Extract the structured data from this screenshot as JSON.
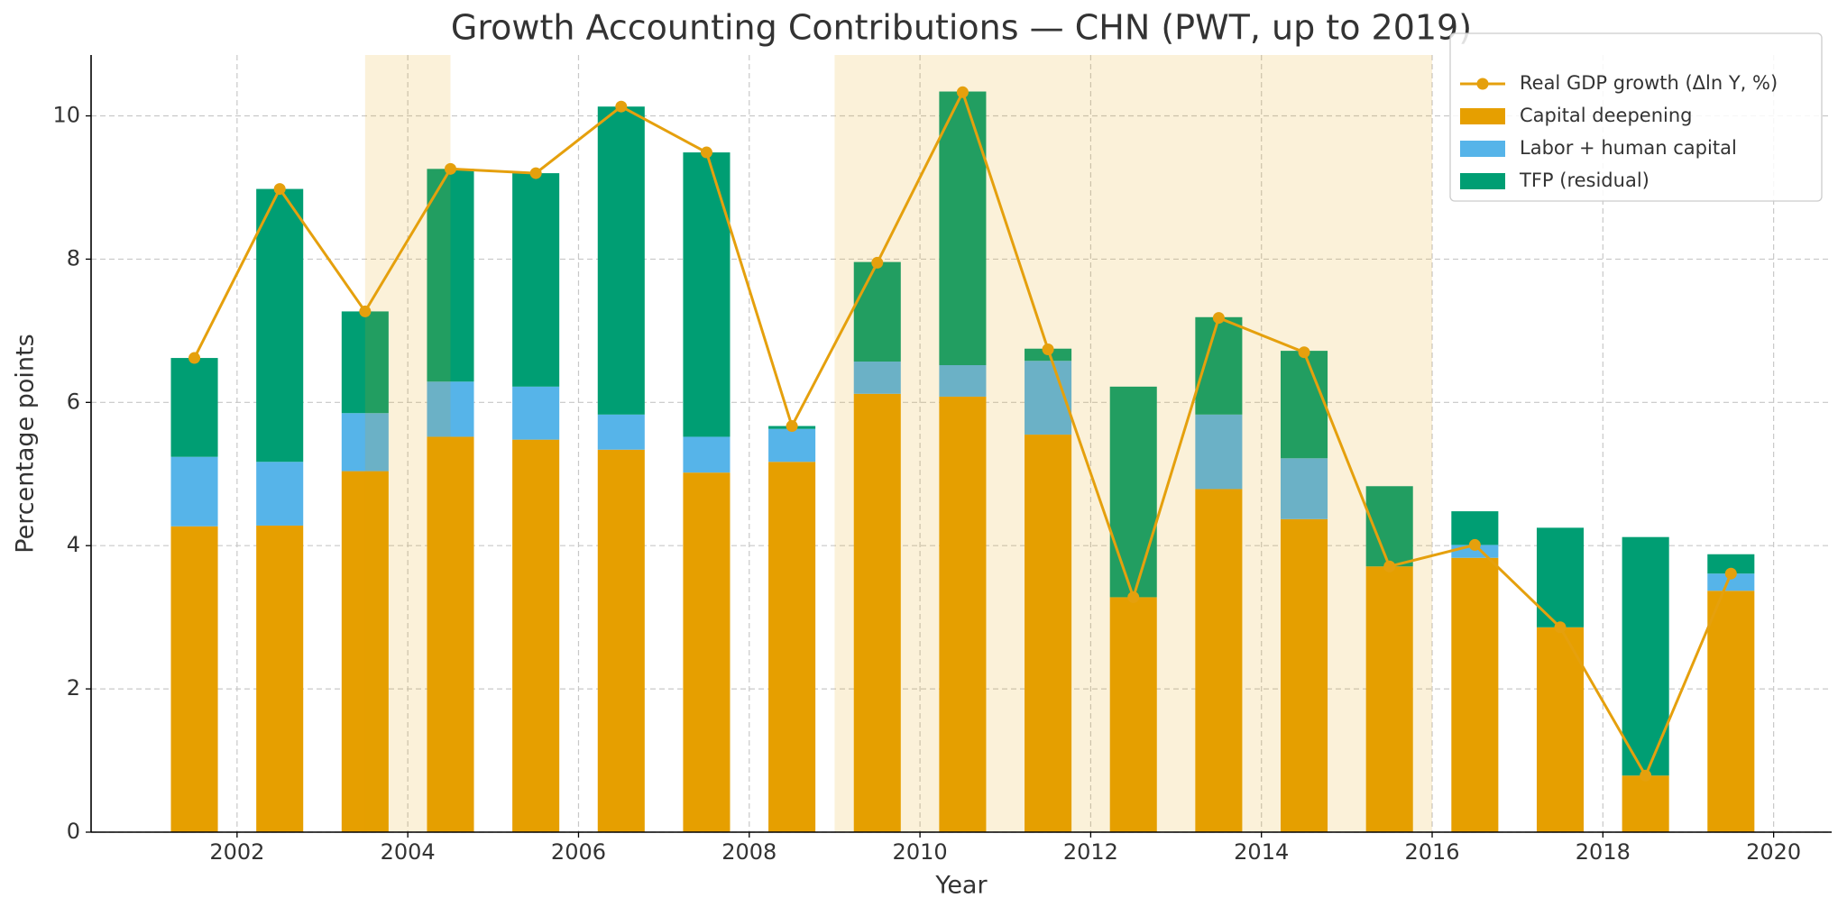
{
  "chart_data": {
    "type": "bar",
    "title": "Growth Accounting Contributions — CHN (PWT, up to 2019)",
    "x_label": "Year",
    "y_label": "Percentage points",
    "x": [
      2001.5,
      2002.5,
      2003.5,
      2004.5,
      2005.5,
      2006.5,
      2007.5,
      2008.5,
      2009.5,
      2010.5,
      2011.5,
      2012.5,
      2013.5,
      2014.5,
      2015.5,
      2016.5,
      2017.5,
      2018.5,
      2019.5
    ],
    "series": [
      {
        "name": "Real GDP growth (Δln Y, %)",
        "type": "line",
        "color": "#e5a00d",
        "values": [
          6.62,
          8.98,
          7.27,
          9.26,
          9.2,
          10.13,
          9.49,
          5.67,
          7.95,
          10.33,
          6.74,
          3.28,
          7.18,
          6.7,
          3.71,
          4.01,
          2.86,
          0.79,
          3.61
        ]
      },
      {
        "name": "Capital deepening",
        "type": "bar",
        "color": "#e69f00",
        "values": [
          4.27,
          4.28,
          5.04,
          5.52,
          5.48,
          5.34,
          5.02,
          5.17,
          6.12,
          6.08,
          5.55,
          3.28,
          4.79,
          4.37,
          3.71,
          3.83,
          2.86,
          0.79,
          3.37
        ]
      },
      {
        "name": "Labor + human capital",
        "type": "bar",
        "color": "#56b4e9",
        "values": [
          0.97,
          0.89,
          0.81,
          0.77,
          0.74,
          0.49,
          0.5,
          0.46,
          0.45,
          0.44,
          1.03,
          0,
          1.04,
          0.85,
          0,
          0.18,
          0,
          0,
          0.24
        ]
      },
      {
        "name": "TFP (residual)",
        "type": "bar",
        "color": "#009e73",
        "values": [
          1.38,
          3.81,
          1.42,
          2.97,
          2.98,
          4.3,
          3.97,
          0.04,
          1.39,
          3.82,
          0.17,
          2.94,
          1.36,
          1.5,
          1.12,
          0.47,
          1.39,
          3.33,
          0.27
        ]
      }
    ],
    "shaded_spans": [
      [
        2003.5,
        2004.5
      ],
      [
        2009,
        2016
      ]
    ],
    "shade_color": "rgba(230,159,0,0.15)",
    "xlim": [
      2000.29,
      2020.68
    ],
    "xticks": [
      2002,
      2004,
      2006,
      2008,
      2010,
      2012,
      2014,
      2016,
      2018,
      2020
    ],
    "ylim": [
      0,
      10.85
    ],
    "yticks": [
      0,
      2,
      4,
      6,
      8,
      10
    ],
    "grid": true,
    "legend": "upper right"
  }
}
